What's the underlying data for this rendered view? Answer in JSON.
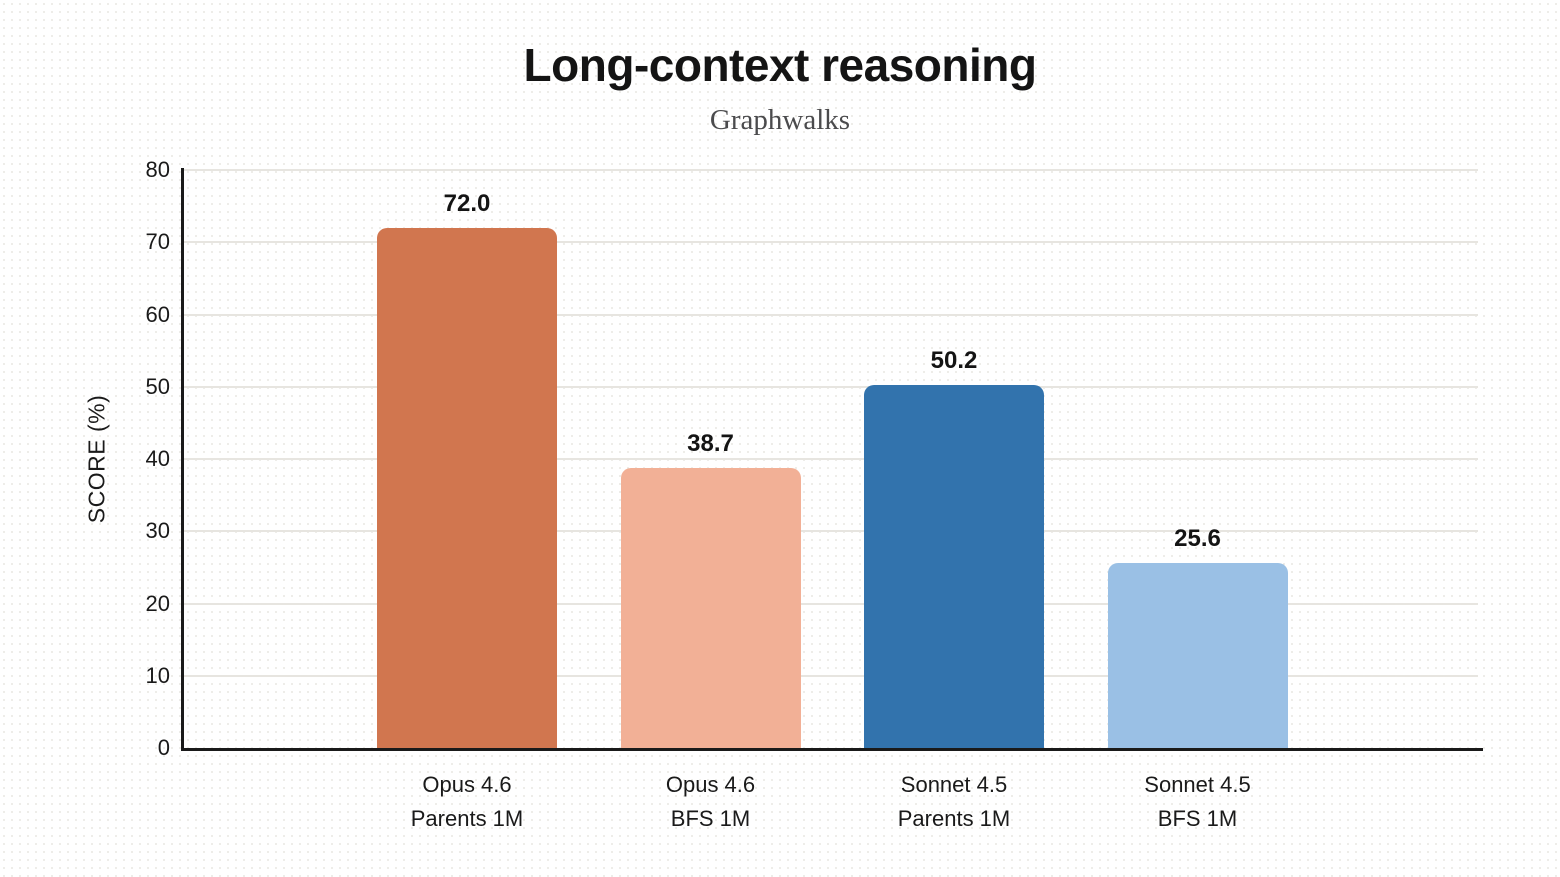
{
  "chart_data": {
    "type": "bar",
    "title": "Long-context reasoning",
    "subtitle": "Graphwalks",
    "ylabel": "SCORE (%)",
    "xlabel": "",
    "ylim": [
      0,
      80
    ],
    "yticks": [
      0,
      10,
      20,
      30,
      40,
      50,
      60,
      70,
      80
    ],
    "grid": "horizontal-on",
    "legend": "none",
    "categories": [
      [
        "Opus 4.6",
        "Parents 1M"
      ],
      [
        "Opus 4.6",
        "BFS 1M"
      ],
      [
        "Sonnet 4.5",
        "Parents 1M"
      ],
      [
        "Sonnet 4.5",
        "BFS 1M"
      ]
    ],
    "values": [
      72.0,
      38.7,
      50.2,
      25.6
    ],
    "value_labels": [
      "72.0",
      "38.7",
      "50.2",
      "25.6"
    ],
    "bar_colors": [
      "#D1764F",
      "#F2B096",
      "#3273AD",
      "#9AC0E5"
    ],
    "colors": {
      "text": "#1A1A1A",
      "axis": "#1A1A1A",
      "gridline": "#E7E5E0",
      "subtitle_text": "#4B4B4D",
      "background": "#FFFFFF"
    }
  }
}
